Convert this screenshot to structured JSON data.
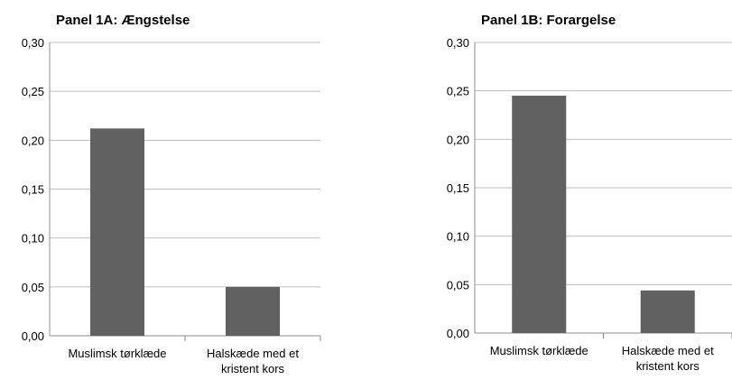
{
  "chart_data": [
    {
      "type": "bar",
      "title": "Panel 1A: Ængstelse",
      "categories": [
        [
          "Muslimsk tørklæde"
        ],
        [
          "Halskæde med et",
          "kristent kors"
        ]
      ],
      "values": [
        0.212,
        0.05
      ],
      "ylim": [
        0,
        0.3
      ],
      "yticks": [
        "0,00",
        "0,05",
        "0,10",
        "0,15",
        "0,20",
        "0,25",
        "0,30"
      ],
      "grid": true,
      "bar_color": "#616161"
    },
    {
      "type": "bar",
      "title": "Panel 1B: Forargelse",
      "categories": [
        [
          "Muslimsk tørklæde"
        ],
        [
          "Halskæde med et",
          "kristent kors"
        ]
      ],
      "values": [
        0.245,
        0.044
      ],
      "ylim": [
        0,
        0.3
      ],
      "yticks": [
        "0,00",
        "0,05",
        "0,10",
        "0,15",
        "0,20",
        "0,25",
        "0,30"
      ],
      "grid": true,
      "bar_color": "#616161"
    }
  ]
}
